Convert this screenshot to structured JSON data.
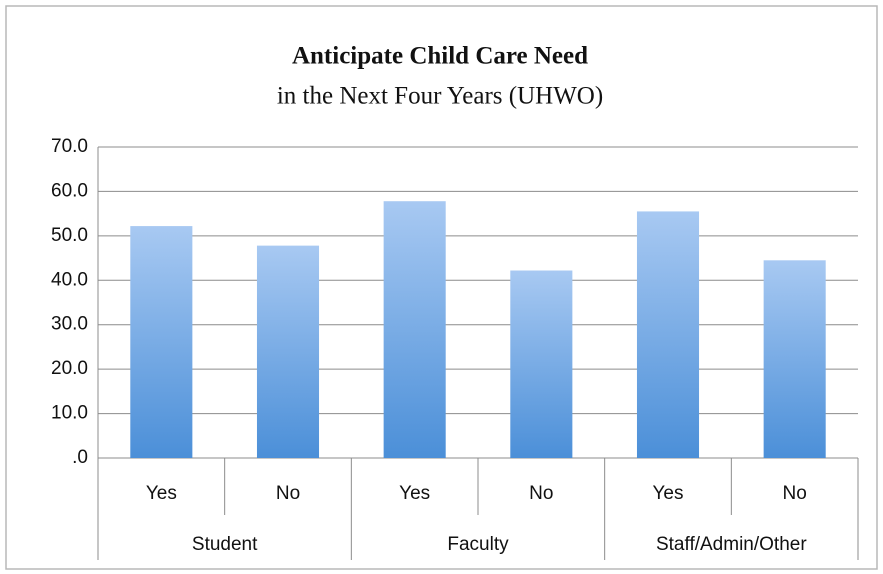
{
  "chart_data": {
    "type": "bar",
    "title": "Anticipate Child Care Need",
    "subtitle": "in the Next Four Years (UHWO)",
    "categories": [
      "Yes",
      "No",
      "Yes",
      "No",
      "Yes",
      "No"
    ],
    "groups": [
      "Student",
      "Faculty",
      "Staff/Admin/Other"
    ],
    "values": [
      52.2,
      47.8,
      57.8,
      42.2,
      55.5,
      44.5
    ],
    "color": "#4b8fd8",
    "ylim": [
      0,
      70
    ],
    "yticks": [
      {
        "value": 0,
        "label": ".0"
      },
      {
        "value": 10,
        "label": "10.0"
      },
      {
        "value": 20,
        "label": "20.0"
      },
      {
        "value": 30,
        "label": "30.0"
      },
      {
        "value": 40,
        "label": "40.0"
      },
      {
        "value": 50,
        "label": "50.0"
      },
      {
        "value": 60,
        "label": "60.0"
      },
      {
        "value": 70,
        "label": "70.0"
      }
    ],
    "grid": true
  }
}
